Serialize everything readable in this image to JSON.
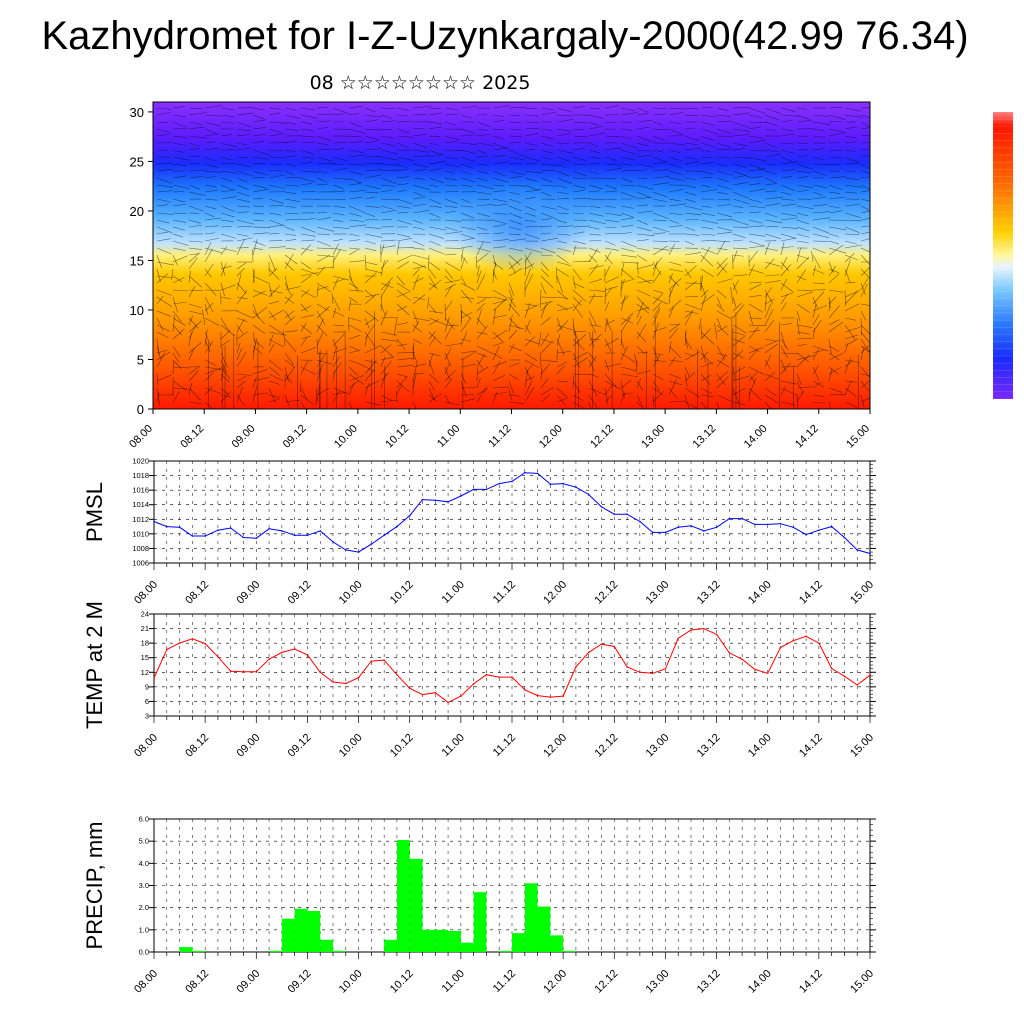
{
  "page": {
    "title": "Kazhydromet for I-Z-Uzynkargaly-2000(42.99 76.34)",
    "subtitle": "08 ☆☆☆☆☆☆☆☆ 2025"
  },
  "colors": {
    "pmsl_line": "#0000ff",
    "temp_line": "#ff0000",
    "precip_bar": "#00ff00",
    "colorbar": [
      "#ff1500",
      "#ff5a00",
      "#ffa000",
      "#ffd400",
      "#fff066",
      "#aad8ff",
      "#4aa6ff",
      "#1a5aff",
      "#1c1cff",
      "#6a1cff",
      "#8a30ff"
    ]
  },
  "chart_data": [
    {
      "type": "heatmap",
      "name": "vertical-cross-section",
      "y_ticks": [
        "0",
        "5",
        "10",
        "15",
        "20",
        "25",
        "30"
      ],
      "ylim": [
        0,
        31
      ],
      "x_ticks": [
        "08.00",
        "08.12",
        "09.00",
        "09.12",
        "10.00",
        "10.12",
        "11.00",
        "11.12",
        "12.00",
        "12.12",
        "13.00",
        "13.12",
        "14.00",
        "14.12",
        "15.00"
      ],
      "colorbar": "red-orange-yellow-blue-purple (warm near ground, cold aloft)"
    },
    {
      "type": "line",
      "name": "pmsl",
      "ylabel": "PMSL",
      "ylim": [
        1006,
        1020
      ],
      "y_ticks": [
        "1006",
        "1008",
        "1010",
        "1012",
        "1014",
        "1016",
        "1018",
        "1020"
      ],
      "x_ticks": [
        "08.00",
        "08.12",
        "09.00",
        "09.12",
        "10.00",
        "10.12",
        "11.00",
        "11.12",
        "12.00",
        "12.12",
        "13.00",
        "13.12",
        "14.00",
        "14.12",
        "15.00"
      ],
      "x": [
        0,
        3,
        6,
        9,
        12,
        15,
        18,
        21,
        24,
        27,
        30,
        33,
        36,
        39,
        42,
        45,
        48,
        51,
        54,
        57,
        60,
        63,
        66,
        69,
        72,
        75,
        78,
        81,
        84,
        87,
        90,
        93,
        96,
        99,
        102,
        105,
        108,
        111,
        114,
        117,
        120,
        123,
        126,
        129,
        132,
        135,
        138,
        141,
        144,
        147,
        150,
        153,
        156,
        159,
        162,
        165,
        168
      ],
      "values": [
        1011.7,
        1011,
        1010.9,
        1009.7,
        1009.7,
        1010.5,
        1010.8,
        1009.5,
        1009.4,
        1010.7,
        1010.4,
        1009.8,
        1009.8,
        1010.4,
        1008.9,
        1007.8,
        1007.5,
        1008.6,
        1009.8,
        1011,
        1012.5,
        1014.7,
        1014.6,
        1014.4,
        1015.2,
        1016.1,
        1016.1,
        1016.9,
        1017.2,
        1018.4,
        1018.3,
        1016.8,
        1016.9,
        1016.4,
        1015.4,
        1013.7,
        1012.7,
        1012.7,
        1011.7,
        1010.2,
        1010.2,
        1010.9,
        1011.1,
        1010.4,
        1010.9,
        1012.1,
        1012.1,
        1011.3,
        1011.3,
        1011.4,
        1010.9,
        1009.9,
        1010.5,
        1011,
        1009.5,
        1007.8,
        1007.3
      ]
    },
    {
      "type": "line",
      "name": "temp-2m",
      "ylabel": "TEMP at 2 M",
      "ylim": [
        3,
        24
      ],
      "y_ticks": [
        "3",
        "6",
        "9",
        "12",
        "15",
        "18",
        "21",
        "24"
      ],
      "x_ticks": [
        "08.00",
        "08.12",
        "09.00",
        "09.12",
        "10.00",
        "10.12",
        "11.00",
        "11.12",
        "12.00",
        "12.12",
        "13.00",
        "13.12",
        "14.00",
        "14.12",
        "15.00"
      ],
      "x": [
        0,
        3,
        6,
        9,
        12,
        15,
        18,
        21,
        24,
        27,
        30,
        33,
        36,
        39,
        42,
        45,
        48,
        51,
        54,
        57,
        60,
        63,
        66,
        69,
        72,
        75,
        78,
        81,
        84,
        87,
        90,
        93,
        96,
        99,
        102,
        105,
        108,
        111,
        114,
        117,
        120,
        123,
        126,
        129,
        132,
        135,
        138,
        141,
        144,
        147,
        150,
        153,
        156,
        159,
        162,
        165,
        168
      ],
      "values": [
        10.8,
        16.7,
        18,
        18.9,
        17.9,
        15.2,
        12.2,
        12.1,
        12.1,
        14.7,
        16.1,
        16.8,
        15.6,
        12,
        10,
        9.7,
        10.9,
        14.3,
        14.5,
        11.5,
        8.7,
        7.4,
        7.8,
        5.8,
        7.1,
        9.6,
        11.5,
        11,
        11,
        8.4,
        7.2,
        6.9,
        7.1,
        13.1,
        16.1,
        17.8,
        17.3,
        13.1,
        12,
        11.8,
        12.7,
        19,
        20.7,
        21,
        19.8,
        16,
        14.7,
        12.6,
        11.8,
        17.1,
        18.5,
        19.4,
        18,
        12.8,
        11.2,
        9.4,
        11.4
      ]
    },
    {
      "type": "bar",
      "name": "precip",
      "ylabel": "PRECIP, mm",
      "ylim": [
        0,
        6
      ],
      "y_ticks": [
        "0.0",
        "1.0",
        "2.0",
        "3.0",
        "4.0",
        "5.0",
        "6.0"
      ],
      "x_ticks": [
        "08.00",
        "08.12",
        "09.00",
        "09.12",
        "10.00",
        "10.12",
        "11.00",
        "11.12",
        "12.00",
        "12.12",
        "13.00",
        "13.12",
        "14.00",
        "14.12",
        "15.00"
      ],
      "x": [
        0,
        3,
        6,
        9,
        12,
        15,
        18,
        21,
        24,
        27,
        30,
        33,
        36,
        39,
        42,
        45,
        48,
        51,
        54,
        57,
        60,
        63,
        66,
        69,
        72,
        75,
        78,
        81,
        84,
        87,
        90,
        93,
        96,
        99,
        102,
        105,
        108,
        111,
        114,
        117,
        120,
        123,
        126,
        129,
        132,
        135,
        138,
        141,
        144,
        147,
        150,
        153,
        156,
        159,
        162,
        165
      ],
      "values": [
        0,
        0,
        0.22,
        0.05,
        0,
        0,
        0,
        0,
        0,
        0.05,
        1.5,
        1.95,
        1.85,
        0.55,
        0.05,
        0,
        0,
        0,
        0.55,
        5.05,
        4.2,
        1,
        1,
        0.95,
        0.42,
        2.7,
        0,
        0.05,
        0.85,
        3.1,
        2.05,
        0.75,
        0.05,
        0,
        0,
        0,
        0,
        0,
        0,
        0,
        0,
        0,
        0,
        0,
        0,
        0,
        0,
        0,
        0,
        0,
        0,
        0,
        0,
        0,
        0,
        0
      ]
    }
  ]
}
